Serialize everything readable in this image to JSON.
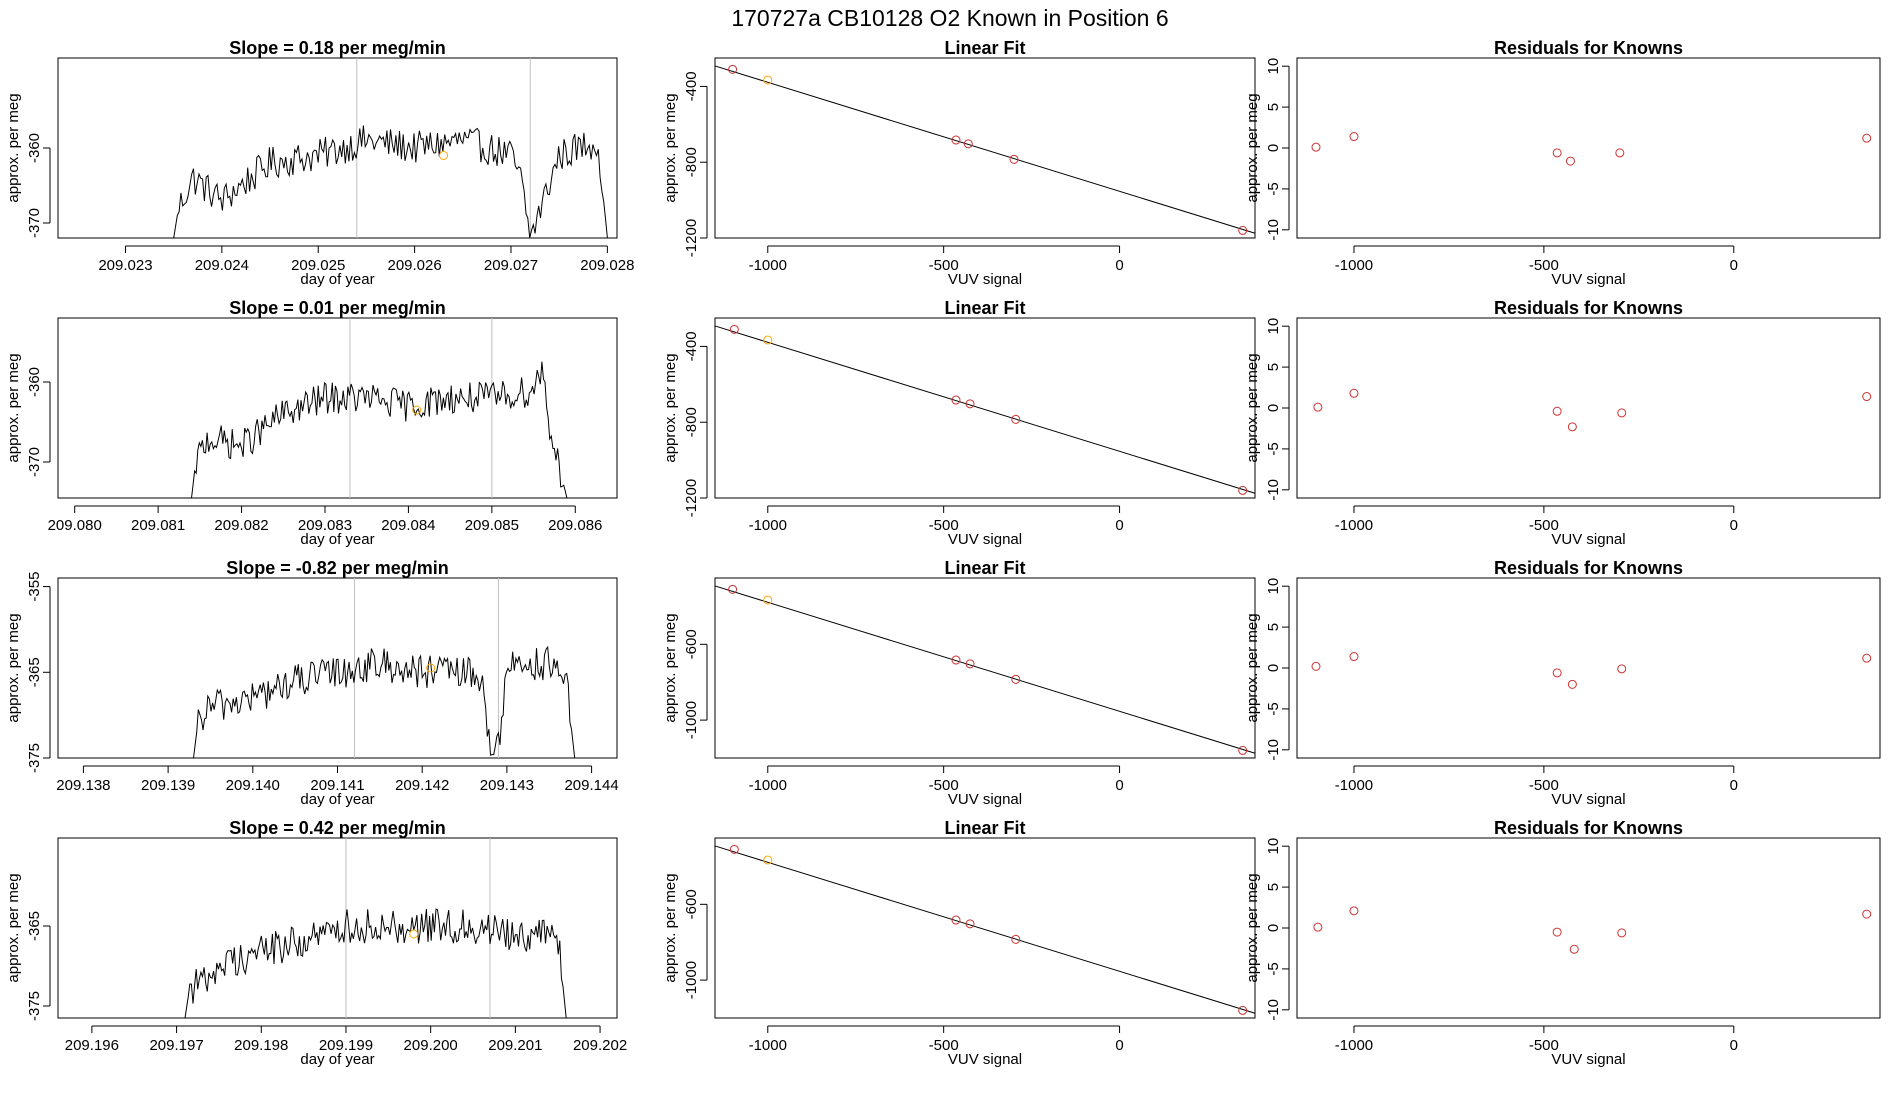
{
  "main_title": "170727a      CB10128    O2 Known in Position  6",
  "colors": {
    "trace": "#000000",
    "vline": "#bebebe",
    "orange": "#ffa500",
    "red": "#cd3333",
    "frame": "#000000"
  },
  "chart_data": [
    {
      "type": "line",
      "title": "Slope =  0.18  per meg/min",
      "xlabel": "day of year",
      "ylabel": "approx. per meg",
      "xlim": [
        209.0223,
        209.0281
      ],
      "ylim": [
        -372,
        -348
      ],
      "xticks": [
        "209.023",
        "209.024",
        "209.025",
        "209.026",
        "209.027",
        "209.028"
      ],
      "xtick_values": [
        209.023,
        209.024,
        209.025,
        209.026,
        209.027,
        209.028
      ],
      "yticks": [
        "-370",
        "-360"
      ],
      "ytick_values": [
        -370,
        -360
      ],
      "vlines": [
        209.0254,
        209.0272
      ],
      "trace_x_range": [
        209.0235,
        209.028
      ],
      "trace_key_points": [
        [
          209.0235,
          -372
        ],
        [
          209.02355,
          -368
        ],
        [
          209.0237,
          -364
        ],
        [
          209.024,
          -367
        ],
        [
          209.0245,
          -362
        ],
        [
          209.025,
          -361
        ],
        [
          209.0255,
          -359
        ],
        [
          209.026,
          -360
        ],
        [
          209.0265,
          -359
        ],
        [
          209.027,
          -361
        ],
        [
          209.0271,
          -364
        ],
        [
          209.0272,
          -372
        ],
        [
          209.0275,
          -361
        ],
        [
          209.0279,
          -359
        ],
        [
          209.028,
          -372
        ]
      ],
      "trace_amplitude": 2.2,
      "marker": {
        "x": 209.0263,
        "y": -361
      }
    },
    {
      "type": "scatter",
      "title": "Linear Fit",
      "xlabel": "VUV signal",
      "ylabel": "approx. per meg",
      "xlim": [
        -1150,
        385
      ],
      "ylim": [
        -1200,
        -250
      ],
      "xticks": [
        "-1000",
        "-500",
        "0"
      ],
      "xtick_values": [
        -1000,
        -500,
        0
      ],
      "yticks": [
        "-1200",
        "-800",
        "-400"
      ],
      "ytick_values": [
        -1200,
        -800,
        -400
      ],
      "line": [
        [
          -1150,
          -292
        ],
        [
          385,
          -1175
        ]
      ],
      "points": [
        {
          "x": -1100,
          "y": -310,
          "color": "red"
        },
        {
          "x": -1000,
          "y": -366,
          "color": "orange"
        },
        {
          "x": -465,
          "y": -683,
          "color": "red"
        },
        {
          "x": -430,
          "y": -703,
          "color": "red"
        },
        {
          "x": -300,
          "y": -785,
          "color": "red"
        },
        {
          "x": 350,
          "y": -1160,
          "color": "red"
        }
      ]
    },
    {
      "type": "scatter",
      "title": "Residuals for Knowns",
      "xlabel": "VUV signal",
      "ylabel": "approx. per meg",
      "xlim": [
        -1150,
        385
      ],
      "ylim": [
        -11,
        11
      ],
      "xticks": [
        "-1000",
        "-500",
        "0"
      ],
      "xtick_values": [
        -1000,
        -500,
        0
      ],
      "yticks": [
        "-10",
        "-5",
        "0",
        "5",
        "10"
      ],
      "ytick_values": [
        -10,
        -5,
        0,
        5,
        10
      ],
      "points": [
        {
          "x": -1100,
          "y": 0.1,
          "color": "red"
        },
        {
          "x": -1000,
          "y": 1.4,
          "color": "red"
        },
        {
          "x": -465,
          "y": -0.6,
          "color": "red"
        },
        {
          "x": -430,
          "y": -1.6,
          "color": "red"
        },
        {
          "x": -300,
          "y": -0.6,
          "color": "red"
        },
        {
          "x": 350,
          "y": 1.2,
          "color": "red"
        }
      ]
    },
    {
      "type": "line",
      "title": "Slope =  0.01  per meg/min",
      "xlabel": "day of year",
      "ylabel": "approx. per meg",
      "xlim": [
        209.0798,
        209.0865
      ],
      "ylim": [
        -374.5,
        -352
      ],
      "xticks": [
        "209.080",
        "209.081",
        "209.082",
        "209.083",
        "209.084",
        "209.085",
        "209.086"
      ],
      "xtick_values": [
        209.08,
        209.081,
        209.082,
        209.083,
        209.084,
        209.085,
        209.086
      ],
      "yticks": [
        "-370",
        "-360"
      ],
      "ytick_values": [
        -370,
        -360
      ],
      "vlines": [
        209.0833,
        209.085
      ],
      "trace_x_range": [
        209.0814,
        209.0859
      ],
      "trace_key_points": [
        [
          209.0814,
          -374.5
        ],
        [
          209.08145,
          -370
        ],
        [
          209.0816,
          -367
        ],
        [
          209.082,
          -368
        ],
        [
          209.0825,
          -364
        ],
        [
          209.083,
          -362
        ],
        [
          209.0835,
          -362
        ],
        [
          209.084,
          -363
        ],
        [
          209.0845,
          -362
        ],
        [
          209.085,
          -362
        ],
        [
          209.0855,
          -361
        ],
        [
          209.0856,
          -358
        ],
        [
          209.0857,
          -366
        ],
        [
          209.0859,
          -374.5
        ]
      ],
      "trace_amplitude": 2.0,
      "marker": {
        "x": 209.0841,
        "y": -363.5
      }
    },
    {
      "type": "scatter",
      "title": "Linear Fit",
      "xlabel": "VUV signal",
      "ylabel": "approx. per meg",
      "xlim": [
        -1150,
        385
      ],
      "ylim": [
        -1200,
        -250
      ],
      "xticks": [
        "-1000",
        "-500",
        "0"
      ],
      "xtick_values": [
        -1000,
        -500,
        0
      ],
      "yticks": [
        "-1200",
        "-800",
        "-400"
      ],
      "ytick_values": [
        -1200,
        -800,
        -400
      ],
      "line": [
        [
          -1150,
          -292
        ],
        [
          385,
          -1175
        ]
      ],
      "points": [
        {
          "x": -1095,
          "y": -310,
          "color": "red"
        },
        {
          "x": -1000,
          "y": -366,
          "color": "orange"
        },
        {
          "x": -465,
          "y": -683,
          "color": "red"
        },
        {
          "x": -425,
          "y": -703,
          "color": "red"
        },
        {
          "x": -295,
          "y": -785,
          "color": "red"
        },
        {
          "x": 350,
          "y": -1160,
          "color": "red"
        }
      ]
    },
    {
      "type": "scatter",
      "title": "Residuals for Knowns",
      "xlabel": "VUV signal",
      "ylabel": "approx. per meg",
      "xlim": [
        -1150,
        385
      ],
      "ylim": [
        -11,
        11
      ],
      "xticks": [
        "-1000",
        "-500",
        "0"
      ],
      "xtick_values": [
        -1000,
        -500,
        0
      ],
      "yticks": [
        "-10",
        "-5",
        "0",
        "5",
        "10"
      ],
      "ytick_values": [
        -10,
        -5,
        0,
        5,
        10
      ],
      "points": [
        {
          "x": -1095,
          "y": 0.1,
          "color": "red"
        },
        {
          "x": -1000,
          "y": 1.8,
          "color": "red"
        },
        {
          "x": -465,
          "y": -0.4,
          "color": "red"
        },
        {
          "x": -425,
          "y": -2.3,
          "color": "red"
        },
        {
          "x": -295,
          "y": -0.6,
          "color": "red"
        },
        {
          "x": 350,
          "y": 1.4,
          "color": "red"
        }
      ]
    },
    {
      "type": "line",
      "title": "Slope =  -0.82  per meg/min",
      "xlabel": "day of year",
      "ylabel": "approx. per meg",
      "xlim": [
        209.1377,
        209.1443
      ],
      "ylim": [
        -375,
        -354
      ],
      "xticks": [
        "209.138",
        "209.139",
        "209.140",
        "209.141",
        "209.142",
        "209.143",
        "209.144"
      ],
      "xtick_values": [
        209.138,
        209.139,
        209.14,
        209.141,
        209.142,
        209.143,
        209.144
      ],
      "yticks": [
        "-375",
        "-365",
        "-355"
      ],
      "ytick_values": [
        -375,
        -365,
        -355
      ],
      "vlines": [
        209.1412,
        209.1429
      ],
      "trace_x_range": [
        209.1393,
        209.1438
      ],
      "trace_key_points": [
        [
          209.1393,
          -375
        ],
        [
          209.13935,
          -371
        ],
        [
          209.1395,
          -369
        ],
        [
          209.14,
          -368
        ],
        [
          209.1405,
          -366
        ],
        [
          209.141,
          -365
        ],
        [
          209.1415,
          -364
        ],
        [
          209.142,
          -365
        ],
        [
          209.1425,
          -365
        ],
        [
          209.1427,
          -366
        ],
        [
          209.1428,
          -373
        ],
        [
          209.1429,
          -374
        ],
        [
          209.143,
          -364
        ],
        [
          209.1435,
          -364
        ],
        [
          209.1437,
          -366
        ],
        [
          209.1438,
          -375
        ]
      ],
      "trace_amplitude": 2.0,
      "marker": {
        "x": 209.1421,
        "y": -364.5
      }
    },
    {
      "type": "scatter",
      "title": "Linear Fit",
      "xlabel": "VUV signal",
      "ylabel": "approx. per meg",
      "xlim": [
        -1150,
        385
      ],
      "ylim": [
        -1200,
        -250
      ],
      "xticks": [
        "-1000",
        "-500",
        "0"
      ],
      "xtick_values": [
        -1000,
        -500,
        0
      ],
      "yticks": [
        "-1000",
        "-600"
      ],
      "ytick_values": [
        -1000,
        -600
      ],
      "line": [
        [
          -1150,
          -292
        ],
        [
          385,
          -1175
        ]
      ],
      "points": [
        {
          "x": -1100,
          "y": -310,
          "color": "red"
        },
        {
          "x": -1000,
          "y": -366,
          "color": "orange"
        },
        {
          "x": -465,
          "y": -683,
          "color": "red"
        },
        {
          "x": -425,
          "y": -703,
          "color": "red"
        },
        {
          "x": -295,
          "y": -785,
          "color": "red"
        },
        {
          "x": 350,
          "y": -1160,
          "color": "red"
        }
      ]
    },
    {
      "type": "scatter",
      "title": "Residuals for Knowns",
      "xlabel": "VUV signal",
      "ylabel": "approx. per meg",
      "xlim": [
        -1150,
        385
      ],
      "ylim": [
        -11,
        11
      ],
      "xticks": [
        "-1000",
        "-500",
        "0"
      ],
      "xtick_values": [
        -1000,
        -500,
        0
      ],
      "yticks": [
        "-10",
        "-5",
        "0",
        "5",
        "10"
      ],
      "ytick_values": [
        -10,
        -5,
        0,
        5,
        10
      ],
      "points": [
        {
          "x": -1100,
          "y": 0.2,
          "color": "red"
        },
        {
          "x": -1000,
          "y": 1.4,
          "color": "red"
        },
        {
          "x": -465,
          "y": -0.6,
          "color": "red"
        },
        {
          "x": -425,
          "y": -2.0,
          "color": "red"
        },
        {
          "x": -295,
          "y": -0.1,
          "color": "red"
        },
        {
          "x": 350,
          "y": 1.2,
          "color": "red"
        }
      ]
    },
    {
      "type": "line",
      "title": "Slope =  0.42  per meg/min",
      "xlabel": "day of year",
      "ylabel": "approx. per meg",
      "xlim": [
        209.1956,
        209.2022
      ],
      "ylim": [
        -376.5,
        -354
      ],
      "xticks": [
        "209.196",
        "209.197",
        "209.198",
        "209.199",
        "209.200",
        "209.201",
        "209.202"
      ],
      "xtick_values": [
        209.196,
        209.197,
        209.198,
        209.199,
        209.2,
        209.201,
        209.202
      ],
      "yticks": [
        "-375",
        "-365"
      ],
      "ytick_values": [
        -375,
        -365
      ],
      "vlines": [
        209.199,
        209.2007
      ],
      "trace_x_range": [
        209.1971,
        209.2016
      ],
      "trace_key_points": [
        [
          209.1971,
          -376.5
        ],
        [
          209.19715,
          -373
        ],
        [
          209.1973,
          -372
        ],
        [
          209.1975,
          -370
        ],
        [
          209.198,
          -368
        ],
        [
          209.1985,
          -367
        ],
        [
          209.199,
          -365
        ],
        [
          209.1995,
          -365
        ],
        [
          209.2,
          -365
        ],
        [
          209.2005,
          -365
        ],
        [
          209.201,
          -366
        ],
        [
          209.2015,
          -366
        ],
        [
          209.2016,
          -376.5
        ]
      ],
      "trace_amplitude": 2.2,
      "marker": {
        "x": 209.1998,
        "y": -366
      }
    },
    {
      "type": "scatter",
      "title": "Linear Fit",
      "xlabel": "VUV signal",
      "ylabel": "approx. per meg",
      "xlim": [
        -1150,
        385
      ],
      "ylim": [
        -1200,
        -250
      ],
      "xticks": [
        "-1000",
        "-500",
        "0"
      ],
      "xtick_values": [
        -1000,
        -500,
        0
      ],
      "yticks": [
        "-1000",
        "-600"
      ],
      "ytick_values": [
        -1000,
        -600
      ],
      "line": [
        [
          -1150,
          -292
        ],
        [
          385,
          -1175
        ]
      ],
      "points": [
        {
          "x": -1095,
          "y": -310,
          "color": "red"
        },
        {
          "x": -1000,
          "y": -366,
          "color": "orange"
        },
        {
          "x": -465,
          "y": -683,
          "color": "red"
        },
        {
          "x": -425,
          "y": -703,
          "color": "red"
        },
        {
          "x": -295,
          "y": -785,
          "color": "red"
        },
        {
          "x": 350,
          "y": -1160,
          "color": "red"
        }
      ]
    },
    {
      "type": "scatter",
      "title": "Residuals for Knowns",
      "xlabel": "VUV signal",
      "ylabel": "approx. per meg",
      "xlim": [
        -1150,
        385
      ],
      "ylim": [
        -11,
        11
      ],
      "xticks": [
        "-1000",
        "-500",
        "0"
      ],
      "xtick_values": [
        -1000,
        -500,
        0
      ],
      "yticks": [
        "-10",
        "-5",
        "0",
        "5",
        "10"
      ],
      "ytick_values": [
        -10,
        -5,
        0,
        5,
        10
      ],
      "points": [
        {
          "x": -1095,
          "y": 0.1,
          "color": "red"
        },
        {
          "x": -1000,
          "y": 2.1,
          "color": "red"
        },
        {
          "x": -465,
          "y": -0.5,
          "color": "red"
        },
        {
          "x": -420,
          "y": -2.6,
          "color": "red"
        },
        {
          "x": -295,
          "y": -0.6,
          "color": "red"
        },
        {
          "x": 350,
          "y": 1.7,
          "color": "red"
        }
      ]
    }
  ]
}
